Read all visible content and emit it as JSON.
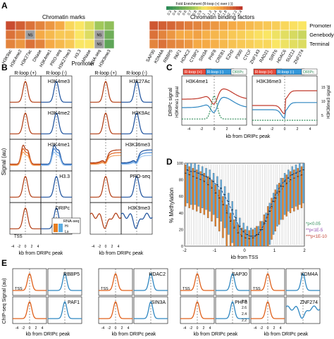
{
  "panel_labels": [
    "A",
    "B",
    "C",
    "D",
    "E"
  ],
  "panel_a": {
    "legend_title": "Fold Enrichment (R-loop (+) over (-))",
    "legend_ticks": [
      "0.3",
      "0.4",
      "0.5",
      "0.6",
      "0.7",
      "0.8",
      "0.9",
      "1",
      "1.2",
      "1.4",
      "1.6",
      "1.8",
      "2",
      "2.2",
      "2.4"
    ],
    "group_titles": [
      "Chromatin marks",
      "Chromatin binding factors"
    ],
    "row_labels": [
      "Promoter",
      "Genebody",
      "Terminal"
    ],
    "ns_label": "NS",
    "marks_columns": [
      "H3K9ac",
      "H3K4me2",
      "H3K27ac",
      "DNase",
      "H3K4me1",
      "PRO-seq",
      "H3K27me3",
      "H3.3",
      "MNase",
      "RNA-seq",
      "H3K9me3"
    ],
    "factor_columns": [
      "SAP30",
      "KDM4A",
      "RBBP5",
      "PAF1",
      "HDAC2",
      "CTBP2",
      "SIN3A",
      "PHF8",
      "CREB1",
      "EZH2",
      "P300",
      "CTCF",
      "ZNF143",
      "RAD21",
      "SIRT6",
      "HDAC6",
      "SUZ12",
      "ZNF274"
    ],
    "colors": {
      "high": "#c0392b",
      "mid": "#f5d742",
      "low": "#2e8b57",
      "ns": "#9e9e9e"
    }
  },
  "panel_b": {
    "title": "Promoter",
    "col_headers": [
      "R-loop (+)",
      "R-loop (-)",
      "R-loop (+)",
      "R-loop (-)"
    ],
    "left_labels": [
      "H3K4me3",
      "H3K4me2",
      "H3K4me1",
      "H3.3",
      "DRIPc"
    ],
    "right_labels": [
      "H3K27Ac",
      "H3K9Ac",
      "H3K36me3",
      "PRO-seq",
      "H3K9me3"
    ],
    "ylabel": "Signal (au)",
    "xlabel": "kb from DRIPc peak",
    "xticks": [
      "-4",
      "-2",
      "0",
      "2",
      "4"
    ],
    "tss_label": "TSS",
    "rnaseq_label": "RNA-seq",
    "hi_label": "Hi",
    "lo_label": "Lo"
  },
  "panel_c": {
    "legend": [
      "R-loop (+)",
      "R-loop (-)",
      "DRIPc"
    ],
    "marks": [
      "H3K4me1",
      "H3K36me3"
    ],
    "ylabel_left": "DRIPc signal",
    "ylabel_mid": "H3K4me1 signal",
    "ylabel_right": "H3K36me3 signal",
    "xlabel": "kb from DRIPc peak",
    "xticks": [
      "-4",
      "-2",
      "0",
      "2",
      "4"
    ],
    "left_yticks": [
      "15",
      "30",
      "45",
      "60"
    ],
    "right_yticks": [
      "5",
      "10",
      "15"
    ]
  },
  "panel_d": {
    "ylabel": "% Methylation",
    "xlabel": "kb from TSS",
    "yticks": [
      "0",
      "20",
      "40",
      "60",
      "80",
      "100"
    ],
    "xticks": [
      "-2",
      "-1",
      "0",
      "1",
      "2"
    ],
    "sig_labels": [
      "*p<0.05",
      "**p<1E-5",
      "***p<1E-10"
    ],
    "sig_colors": [
      "#2e8b57",
      "#8e44ad",
      "#c0392b"
    ],
    "series": [
      {
        "color": "#e67e22",
        "medians": [
          88,
          86,
          84,
          82,
          80,
          78,
          74,
          70,
          64,
          58,
          50,
          40,
          30,
          22,
          16,
          12,
          10,
          9,
          10,
          14,
          20,
          28,
          38,
          48,
          58,
          66,
          72,
          76,
          80,
          82,
          84,
          86
        ]
      },
      {
        "color": "#5dade2",
        "medians": [
          92,
          90,
          90,
          88,
          86,
          84,
          82,
          78,
          74,
          70,
          62,
          54,
          44,
          34,
          24,
          18,
          14,
          12,
          12,
          14,
          20,
          30,
          42,
          54,
          64,
          72,
          78,
          82,
          86,
          88,
          90,
          92
        ]
      }
    ]
  },
  "panel_e": {
    "groups": [
      {
        "labels": [
          "RBBP5",
          "PAF1"
        ]
      },
      {
        "labels": [
          "HDAC2",
          "SIN3A"
        ]
      },
      {
        "labels": [
          "SAP30",
          "PHF8"
        ]
      },
      {
        "labels": [
          "KDM4A",
          "ZNF274"
        ]
      }
    ],
    "ylabel": "ChIP-seq Signal (au)",
    "xlabel": "kb from DRIPc peak",
    "xticks": [
      "-4",
      "-2",
      "0",
      "2",
      "4"
    ],
    "tss_label": "TSS",
    "yticks_last": [
      "2.8",
      "2.6",
      "2.4",
      "2.2"
    ]
  }
}
